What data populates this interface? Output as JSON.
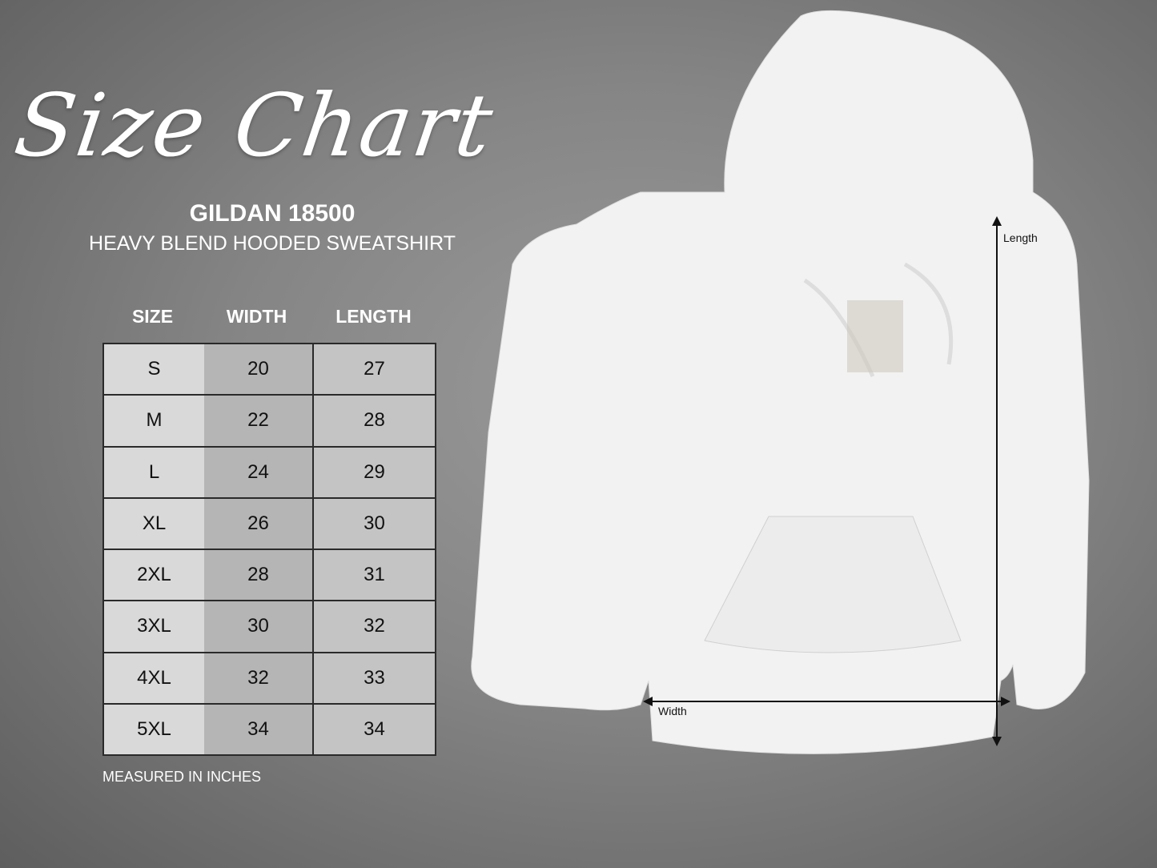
{
  "title": "Size Chart",
  "brand": {
    "model": "GILDAN 18500",
    "description": "HEAVY BLEND HOODED SWEATSHIRT"
  },
  "table": {
    "headers": [
      "SIZE",
      "WIDTH",
      "LENGTH"
    ],
    "rows": [
      [
        "S",
        "20",
        "27"
      ],
      [
        "M",
        "22",
        "28"
      ],
      [
        "L",
        "24",
        "29"
      ],
      [
        "XL",
        "26",
        "30"
      ],
      [
        "2XL",
        "28",
        "31"
      ],
      [
        "3XL",
        "30",
        "32"
      ],
      [
        "4XL",
        "32",
        "33"
      ],
      [
        "5XL",
        "34",
        "34"
      ]
    ]
  },
  "note": "MEASURED IN INCHES",
  "diagram": {
    "length_label": "Length",
    "width_label": "Width"
  },
  "colors": {
    "background": "#858585",
    "text": "#ffffff",
    "garment": "#f2f2f2"
  }
}
